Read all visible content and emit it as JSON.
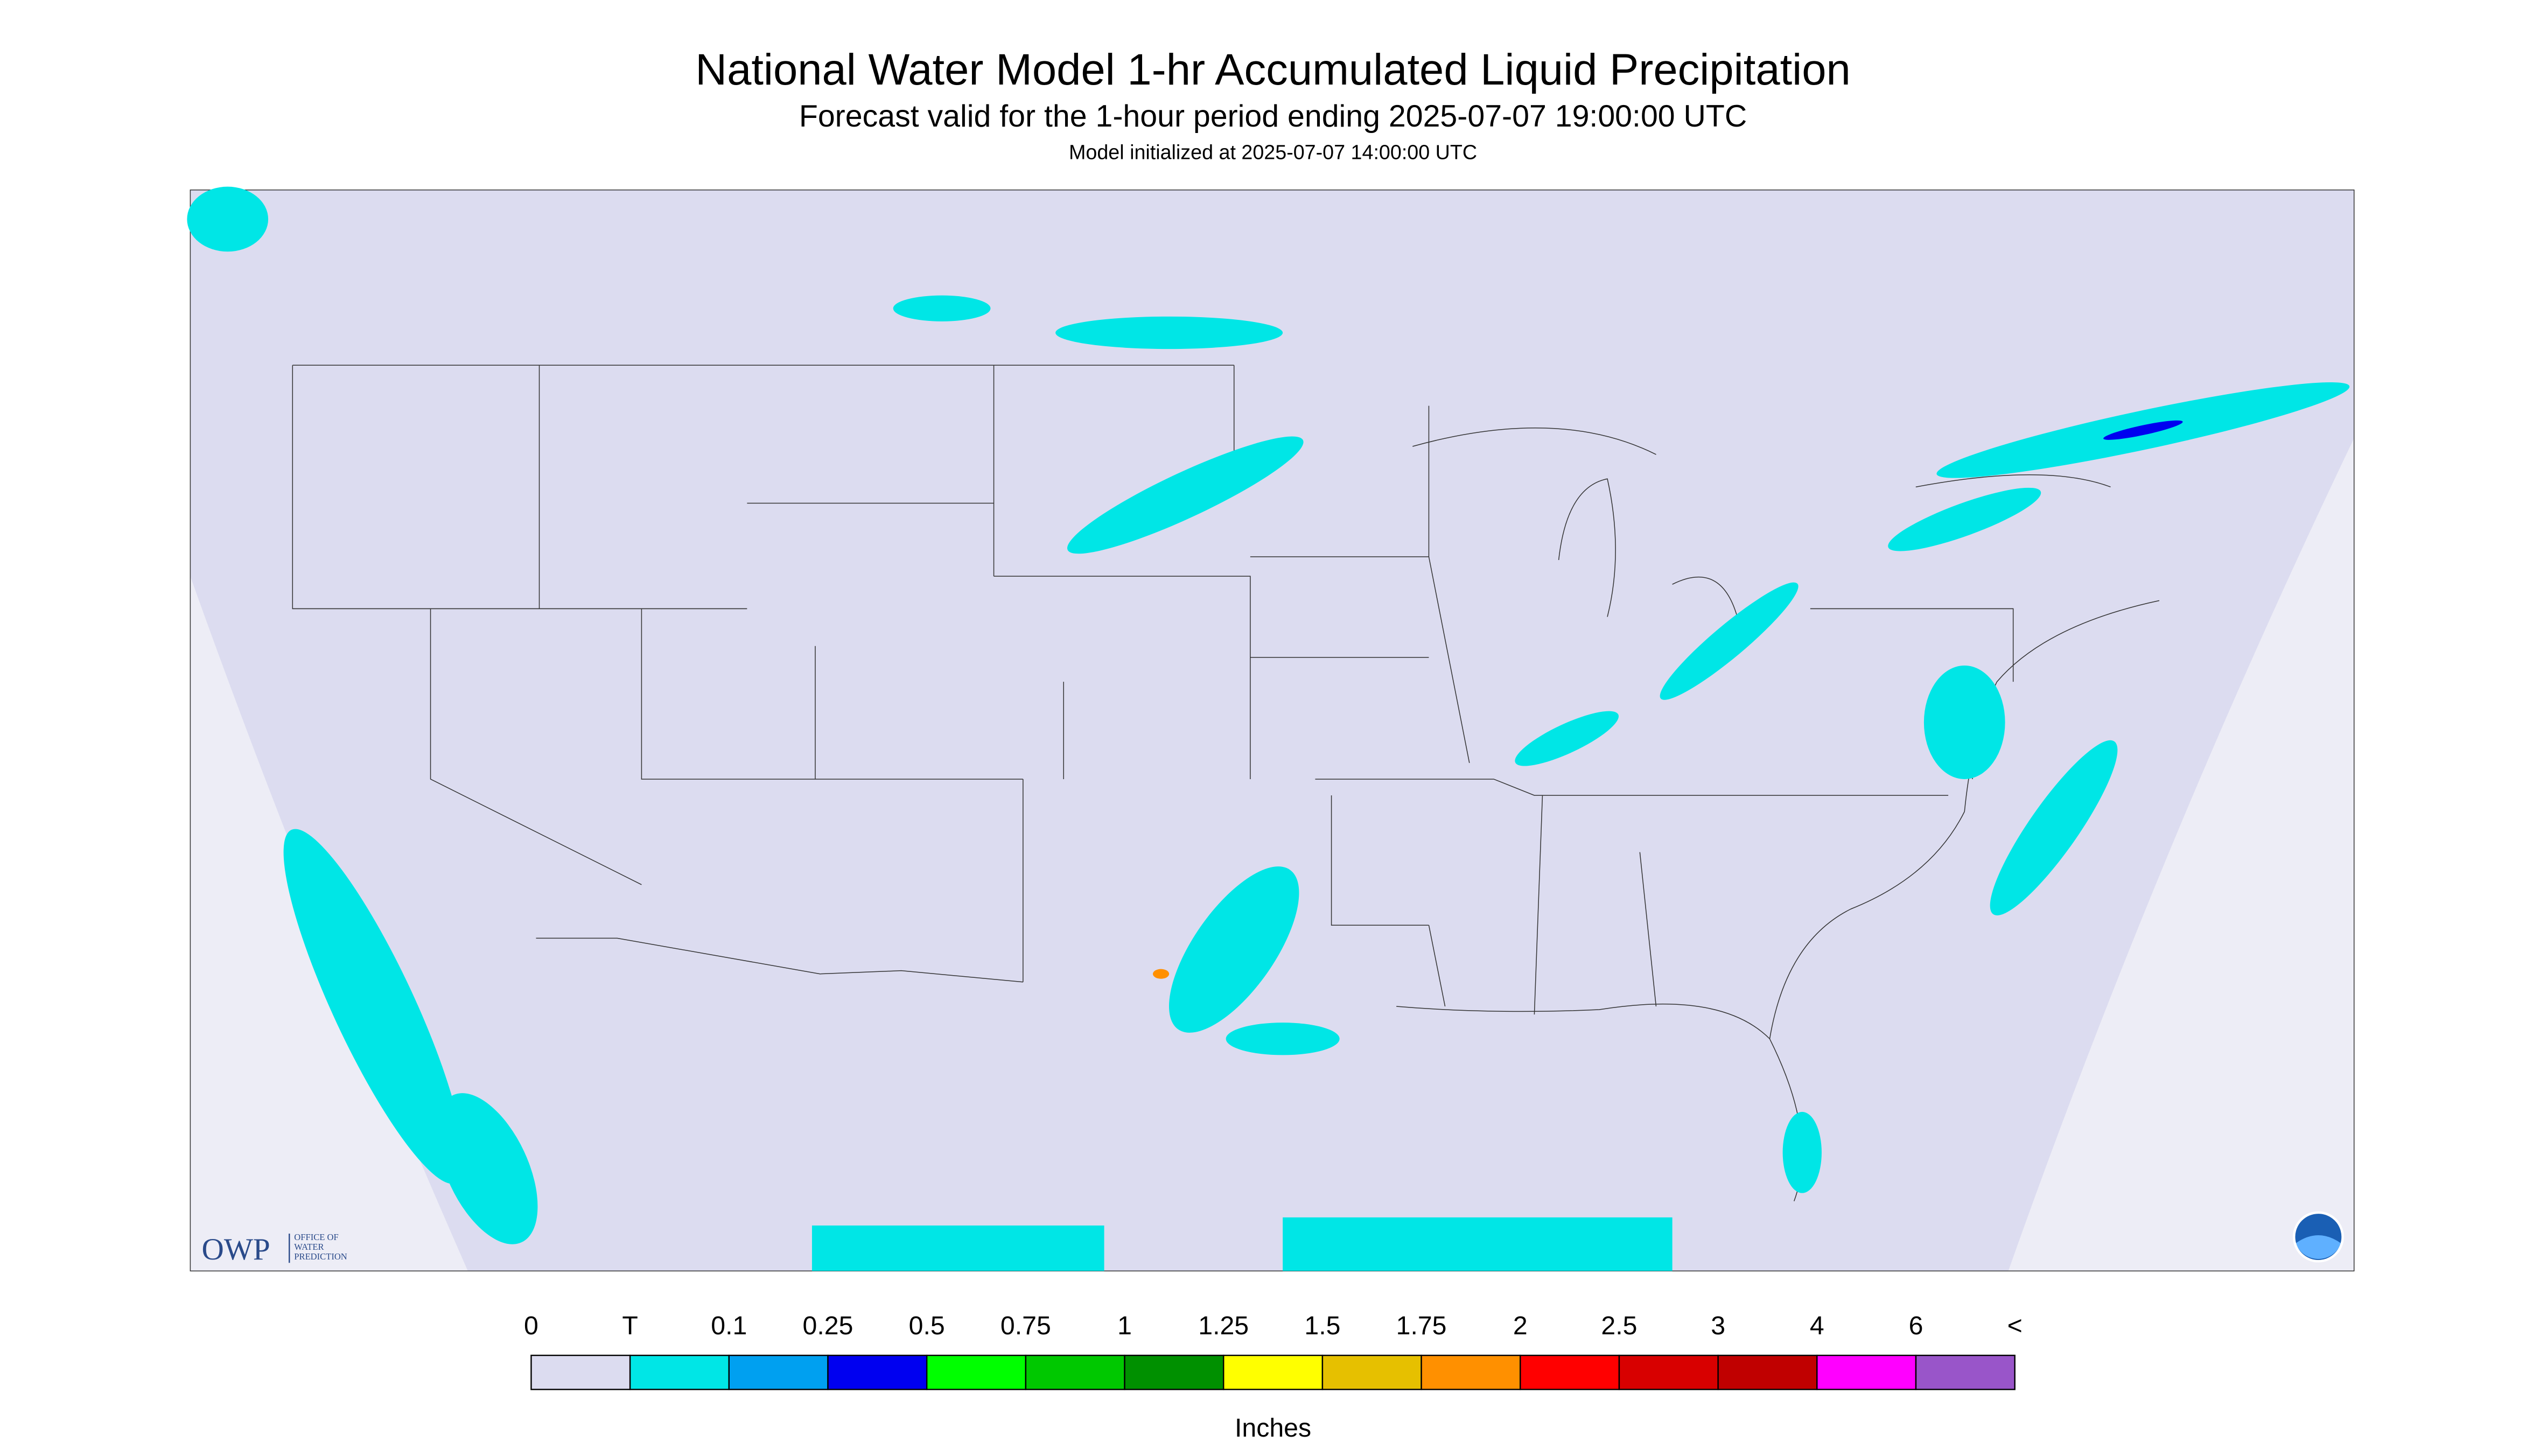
{
  "header": {
    "title": "National Water Model 1-hr Accumulated Liquid Precipitation",
    "subtitle": "Forecast valid for the 1-hour period ending 2025-07-07 19:00:00 UTC",
    "initialized": "Model initialized at 2025-07-07 14:00:00 UTC"
  },
  "legend": {
    "labels": [
      "0",
      "T",
      "0.1",
      "0.25",
      "0.5",
      "0.75",
      "1",
      "1.25",
      "1.5",
      "1.75",
      "2",
      "2.5",
      "3",
      "4",
      "6",
      "<"
    ],
    "colors": [
      "#dcdcf0",
      "#00e6e6",
      "#00a0f0",
      "#0000f0",
      "#00ff00",
      "#00c800",
      "#009000",
      "#ffff00",
      "#e6c000",
      "#ff9000",
      "#ff0000",
      "#d80000",
      "#c00000",
      "#ff00ff",
      "#9955c9"
    ],
    "unit": "Inches"
  },
  "logo": {
    "abbr": "OWP",
    "lines": [
      "OFFICE OF",
      "WATER",
      "PREDICTION"
    ]
  }
}
